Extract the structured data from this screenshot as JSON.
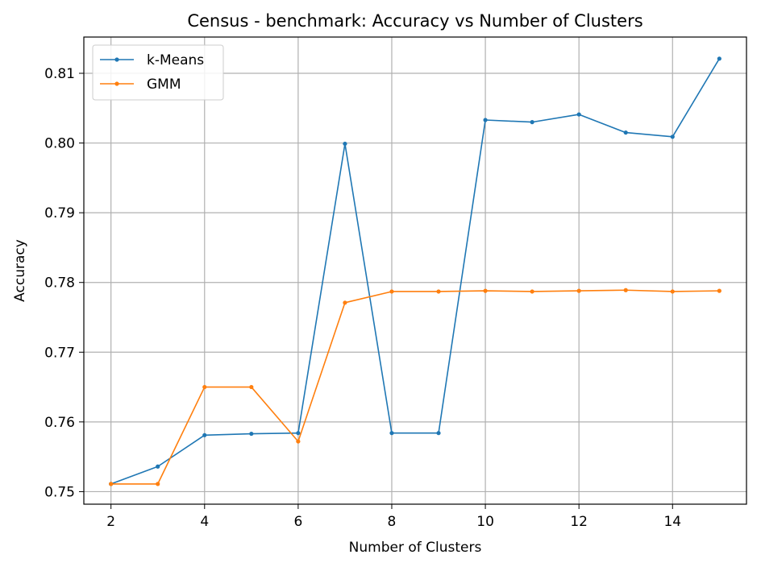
{
  "chart_data": {
    "type": "line",
    "title": "Census - benchmark: Accuracy vs Number of Clusters",
    "xlabel": "Number of Clusters",
    "ylabel": "Accuracy",
    "x": [
      2,
      3,
      4,
      5,
      6,
      7,
      8,
      9,
      10,
      11,
      12,
      13,
      14,
      15
    ],
    "xlim": [
      1.42,
      15.58
    ],
    "ylim": [
      0.7482,
      0.8152
    ],
    "xticks": [
      2,
      4,
      6,
      8,
      10,
      12,
      14
    ],
    "yticks": [
      0.75,
      0.76,
      0.77,
      0.78,
      0.79,
      0.8,
      0.81
    ],
    "ytick_labels": [
      "0.75",
      "0.76",
      "0.77",
      "0.78",
      "0.79",
      "0.80",
      "0.81"
    ],
    "grid": true,
    "legend_position": "top-left",
    "series": [
      {
        "name": "k-Means",
        "color": "#1f77b4",
        "values": [
          0.7511,
          0.7536,
          0.7581,
          0.7583,
          0.7584,
          0.7999,
          0.7584,
          0.7584,
          0.8033,
          0.803,
          0.8041,
          0.8015,
          0.8009,
          0.8121
        ]
      },
      {
        "name": "GMM",
        "color": "#ff7f0e",
        "values": [
          0.7511,
          0.7511,
          0.765,
          0.765,
          0.7572,
          0.7771,
          0.7787,
          0.7787,
          0.7788,
          0.7787,
          0.7788,
          0.7789,
          0.7787,
          0.7788
        ]
      }
    ]
  }
}
